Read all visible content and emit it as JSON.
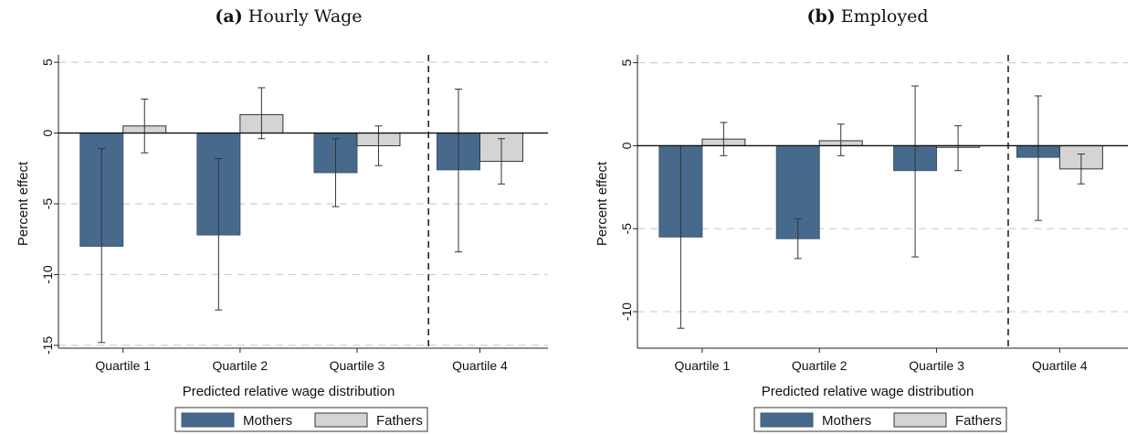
{
  "chart_data": [
    {
      "type": "bar",
      "panel_label": "(a)",
      "title": "Hourly Wage",
      "xlabel": "Predicted relative wage distribution",
      "ylabel": "Percent effect",
      "categories": [
        "Quartile 1",
        "Quartile 2",
        "Quartile 3",
        "Quartile 4"
      ],
      "ylim": [
        -15.2,
        5.2
      ],
      "yticks": [
        5,
        0,
        -5,
        -10,
        -15
      ],
      "grid": true,
      "separator_after_category": 3,
      "legend_position": "bottom",
      "series": [
        {
          "name": "Mothers",
          "color": "#476a8c",
          "values": [
            -8.0,
            -7.2,
            -2.8,
            -2.6
          ],
          "ci_low": [
            -14.8,
            -12.5,
            -5.2,
            -8.4
          ],
          "ci_high": [
            -1.1,
            -1.8,
            -0.4,
            3.1
          ]
        },
        {
          "name": "Fathers",
          "color": "#d4d4d4",
          "values": [
            0.5,
            1.3,
            -0.9,
            -2.0
          ],
          "ci_low": [
            -1.4,
            -0.4,
            -2.3,
            -3.6
          ],
          "ci_high": [
            2.4,
            3.2,
            0.5,
            -0.4
          ]
        }
      ]
    },
    {
      "type": "bar",
      "panel_label": "(b)",
      "title": "Employed",
      "xlabel": "Predicted relative wage distribution",
      "ylabel": "Percent effect",
      "categories": [
        "Quartile 1",
        "Quartile 2",
        "Quartile 3",
        "Quartile 4"
      ],
      "ylim": [
        -12.2,
        5.2
      ],
      "yticks": [
        5,
        0,
        -5,
        -10
      ],
      "grid": true,
      "separator_after_category": 3,
      "legend_position": "bottom",
      "series": [
        {
          "name": "Mothers",
          "color": "#476a8c",
          "values": [
            -5.5,
            -5.6,
            -1.5,
            -0.7
          ],
          "ci_low": [
            -11.0,
            -6.8,
            -6.7,
            -4.5
          ],
          "ci_high": [
            0.0,
            -4.4,
            3.6,
            3.0
          ]
        },
        {
          "name": "Fathers",
          "color": "#d4d4d4",
          "values": [
            0.4,
            0.3,
            -0.1,
            -1.4
          ],
          "ci_low": [
            -0.6,
            -0.6,
            -1.5,
            -2.3
          ],
          "ci_high": [
            1.4,
            1.3,
            1.2,
            -0.5
          ]
        }
      ]
    }
  ]
}
